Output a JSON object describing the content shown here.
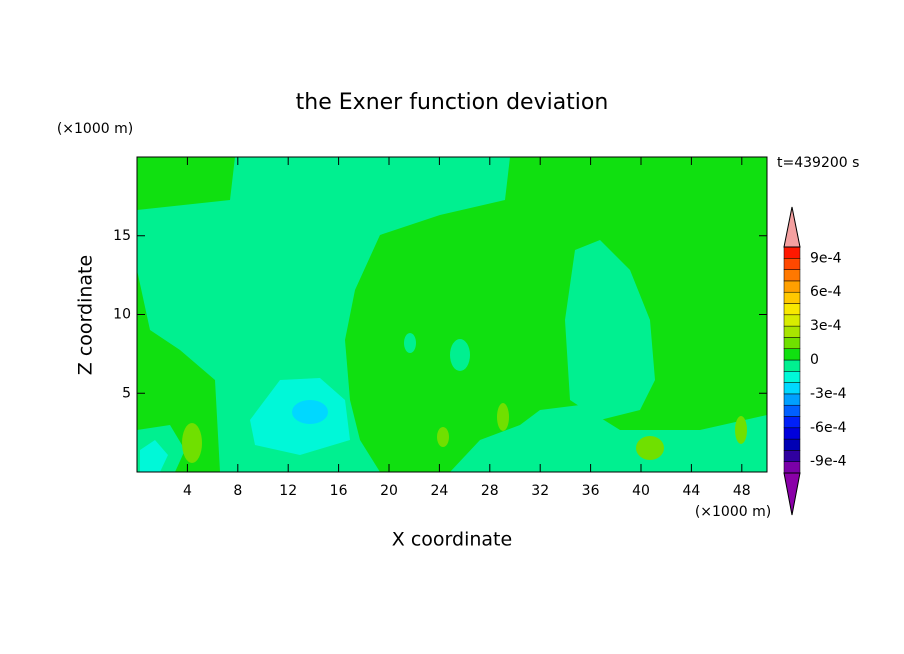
{
  "chart_data": {
    "type": "contour",
    "title": "the Exner function deviation",
    "x_label": "X coordinate",
    "y_label": "Z coordinate",
    "x_unit": "(×1000 m)",
    "y_unit": "(×1000 m)",
    "time_label": "t=439200 s",
    "xlim": [
      0,
      50
    ],
    "ylim": [
      0,
      20
    ],
    "xticks": [
      4,
      8,
      12,
      16,
      20,
      24,
      28,
      32,
      36,
      40,
      44,
      48
    ],
    "yticks": [
      5,
      10,
      15
    ],
    "levels": [
      -0.001,
      -0.0009,
      -0.0008,
      -0.0007,
      -0.0006,
      -0.0005,
      -0.0004,
      -0.0003,
      -0.0002,
      -0.0001,
      0,
      0.0001,
      0.0002,
      0.0003,
      0.0004,
      0.0005,
      0.0006,
      0.0007,
      0.0008,
      0.0009,
      0.001
    ],
    "colors": [
      "#7a00a8",
      "#3000a0",
      "#0000b4",
      "#0000dc",
      "#0020f8",
      "#0060ff",
      "#00a0ff",
      "#00d8ff",
      "#00f8d8",
      "#00f090",
      "#10e010",
      "#70e000",
      "#a8e400",
      "#d8ec00",
      "#f8e800",
      "#ffc800",
      "#ffa000",
      "#ff7800",
      "#ff4800",
      "#ff1800"
    ],
    "extend_colors": [
      "#8a00a8",
      "#f4a0a0"
    ],
    "colorbar_ticks": [
      {
        "value": -0.0009,
        "label": "-9e-4"
      },
      {
        "value": -0.0006,
        "label": "-6e-4"
      },
      {
        "value": -0.0003,
        "label": "-3e-4"
      },
      0,
      {
        "value": 0.0003,
        "label": "3e-4"
      },
      {
        "value": 0.0006,
        "label": "6e-4"
      },
      {
        "value": 0.0009,
        "label": "9e-4"
      }
    ]
  }
}
